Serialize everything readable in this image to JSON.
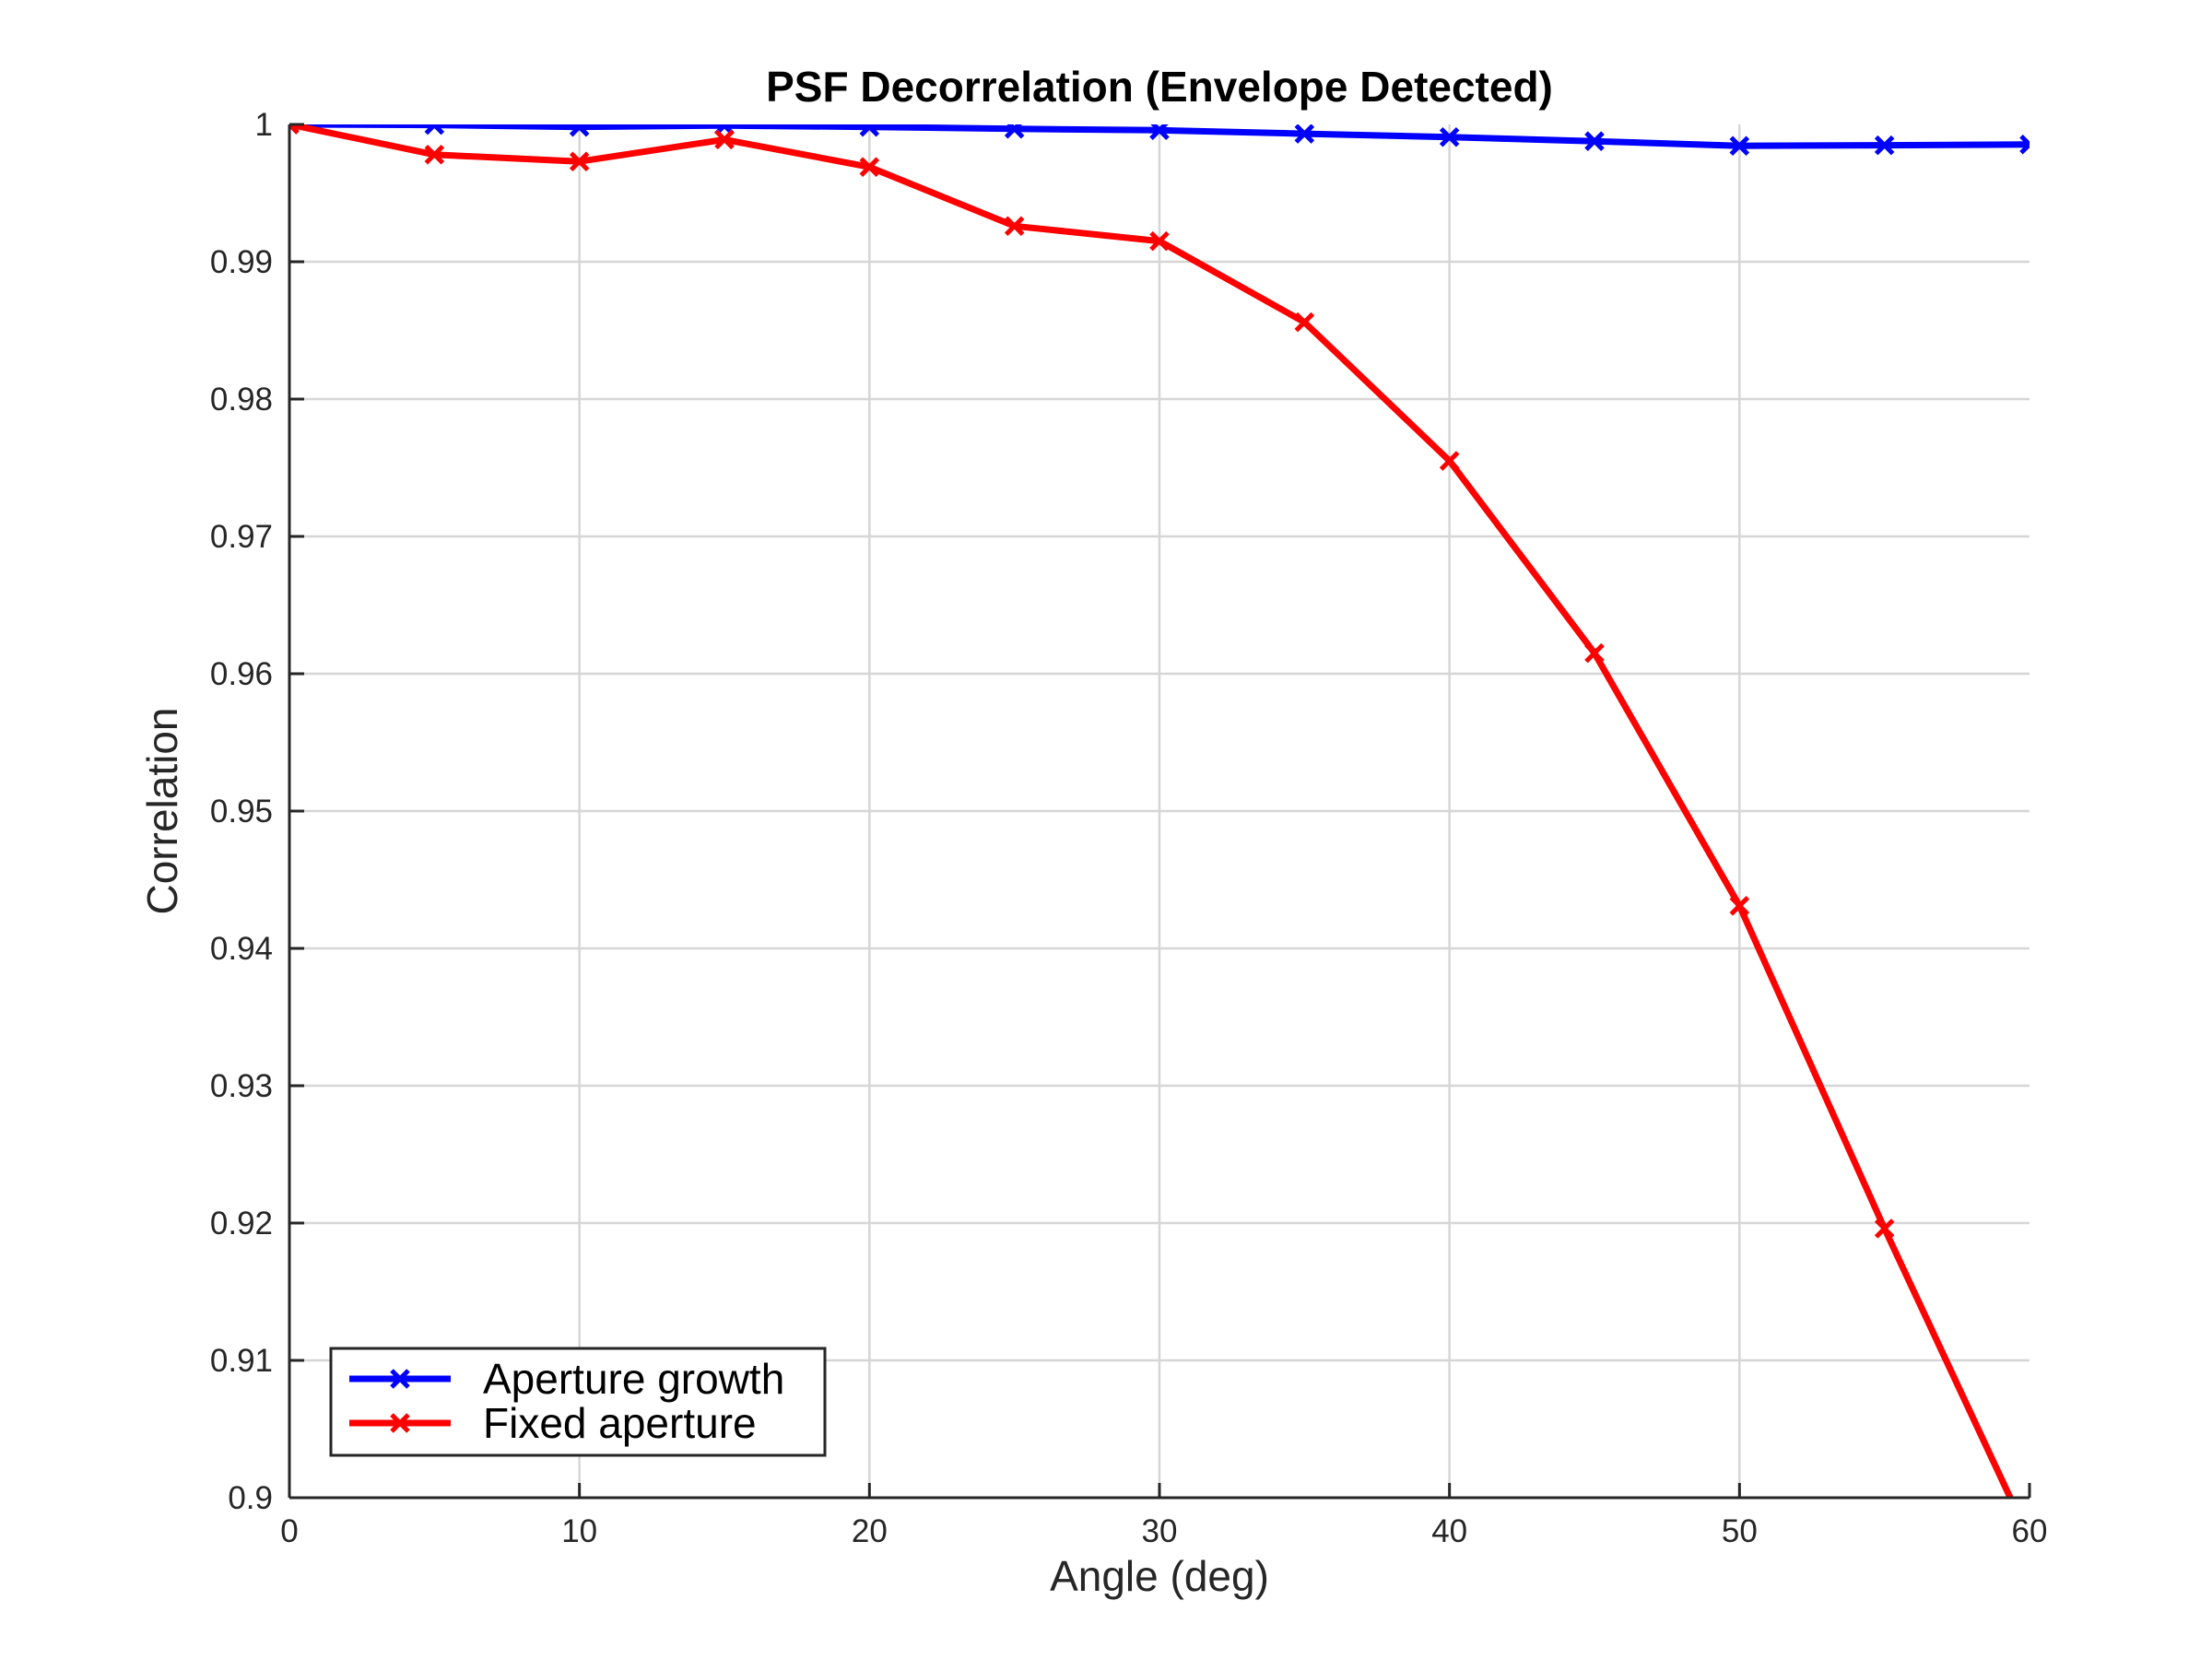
{
  "chart_data": {
    "type": "line",
    "title": "PSF Decorrelation (Envelope Detected)",
    "xlabel": "Angle (deg)",
    "ylabel": "Correlation",
    "xlim": [
      0,
      60
    ],
    "ylim": [
      0.9,
      1.0
    ],
    "x_ticks": [
      0,
      10,
      20,
      30,
      40,
      50,
      60
    ],
    "x_tick_labels": [
      "0",
      "10",
      "20",
      "30",
      "40",
      "50",
      "60"
    ],
    "y_ticks": [
      0.9,
      0.91,
      0.92,
      0.93,
      0.94,
      0.95,
      0.96,
      0.97,
      0.98,
      0.99,
      1.0
    ],
    "y_tick_labels": [
      "0.9",
      "0.91",
      "0.92",
      "0.93",
      "0.94",
      "0.95",
      "0.96",
      "0.97",
      "0.98",
      "0.99",
      "1"
    ],
    "grid": true,
    "legend_position": "bottom-left",
    "x": [
      0,
      5,
      10,
      15,
      20,
      25,
      30,
      35,
      40,
      45,
      50,
      55,
      60
    ],
    "series": [
      {
        "name": "Aperture growth",
        "color": "#0000ff",
        "marker": "x",
        "values": [
          1.0,
          0.99996,
          0.99982,
          0.99992,
          0.99982,
          0.99968,
          0.99958,
          0.99932,
          0.99908,
          0.99878,
          0.99844,
          0.99848,
          0.99854
        ]
      },
      {
        "name": "Fixed aperture",
        "color": "#ff0000",
        "marker": "x",
        "values": [
          1.0,
          0.9978,
          0.9973,
          0.9989,
          0.9969,
          0.9926,
          0.9915,
          0.9856,
          0.9755,
          0.9615,
          0.9431,
          0.9196,
          0.897
        ]
      }
    ]
  }
}
